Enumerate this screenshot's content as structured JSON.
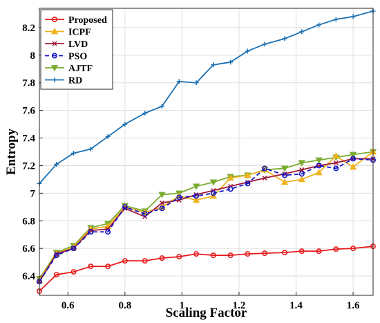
{
  "chart_data": {
    "type": "line",
    "xlabel": "Scaling Factor",
    "ylabel": "Entropy",
    "xlim": [
      0.5,
      1.67
    ],
    "ylim": [
      6.26,
      8.34
    ],
    "xticks": [
      0.6,
      0.8,
      1,
      1.2,
      1.4,
      1.6
    ],
    "xtick_labels": [
      "0.6",
      "0.8",
      "1",
      "1.2",
      "1.4",
      "1.6"
    ],
    "yticks": [
      6.4,
      6.6,
      6.8,
      7,
      7.2,
      7.4,
      7.6,
      7.8,
      8,
      8.2
    ],
    "ytick_labels": [
      "6.4",
      "6.6",
      "6.8",
      "7",
      "7.2",
      "7.4",
      "7.6",
      "7.8",
      "8",
      "8.2"
    ],
    "grid": true,
    "legend_position": "top-left",
    "x": [
      0.5,
      0.56,
      0.62,
      0.68,
      0.74,
      0.8,
      0.87,
      0.93,
      0.99,
      1.05,
      1.11,
      1.17,
      1.23,
      1.29,
      1.36,
      1.42,
      1.48,
      1.54,
      1.6,
      1.67
    ],
    "series": [
      {
        "name": "Proposed",
        "color": "#e8191a",
        "marker": "circle-open",
        "dashed": false,
        "values": [
          6.29,
          6.41,
          6.43,
          6.47,
          6.47,
          6.51,
          6.51,
          6.53,
          6.54,
          6.56,
          6.55,
          6.55,
          6.56,
          6.565,
          6.57,
          6.58,
          6.58,
          6.595,
          6.6,
          6.615
        ]
      },
      {
        "name": "ICPF",
        "color": "#efb21f",
        "marker": "triangle-up",
        "dashed": false,
        "values": [
          6.37,
          6.56,
          6.61,
          6.74,
          6.76,
          6.9,
          6.86,
          6.9,
          6.98,
          6.95,
          6.98,
          7.11,
          7.13,
          7.17,
          7.08,
          7.1,
          7.15,
          7.27,
          7.19,
          7.3
        ]
      },
      {
        "name": "LVD",
        "color": "#a11a38",
        "marker": "x",
        "dashed": false,
        "values": [
          6.36,
          6.56,
          6.6,
          6.73,
          6.74,
          6.89,
          6.83,
          6.93,
          6.95,
          6.99,
          7.02,
          7.05,
          7.08,
          7.11,
          7.14,
          7.17,
          7.2,
          7.22,
          7.25,
          7.25
        ]
      },
      {
        "name": "PSO",
        "color": "#1515c8",
        "marker": "circle-open",
        "dashed": true,
        "values": [
          6.36,
          6.55,
          6.6,
          6.72,
          6.72,
          6.9,
          6.85,
          6.89,
          6.97,
          6.98,
          7.0,
          7.03,
          7.07,
          7.18,
          7.13,
          7.14,
          7.2,
          7.18,
          7.25,
          7.24
        ]
      },
      {
        "name": "AJTF",
        "color": "#7aab30",
        "marker": "triangle-down",
        "dashed": false,
        "values": [
          6.38,
          6.57,
          6.62,
          6.75,
          6.78,
          6.91,
          6.87,
          6.99,
          7.0,
          7.05,
          7.08,
          7.12,
          7.13,
          7.17,
          7.18,
          7.22,
          7.24,
          7.26,
          7.28,
          7.3
        ]
      },
      {
        "name": "RD",
        "color": "#1b70b3",
        "marker": "plus",
        "dashed": false,
        "values": [
          7.07,
          7.21,
          7.29,
          7.32,
          7.41,
          7.5,
          7.58,
          7.63,
          7.81,
          7.8,
          7.93,
          7.95,
          8.03,
          8.08,
          8.12,
          8.17,
          8.22,
          8.26,
          8.28,
          8.32
        ]
      }
    ]
  }
}
